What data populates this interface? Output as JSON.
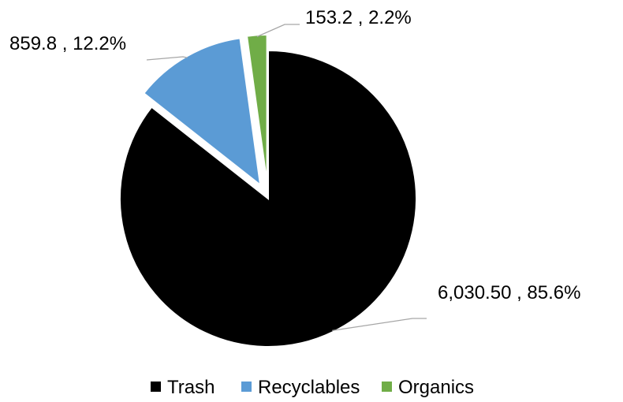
{
  "chart_data": {
    "type": "pie",
    "title": "",
    "categories": [
      "Trash",
      "Recyclables",
      "Organics"
    ],
    "values": [
      6030.5,
      859.8,
      153.2
    ],
    "data_labels": [
      "6,030.50 , 85.6%",
      "859.8 , 12.2%",
      "153.2 , 2.2%"
    ],
    "percentages": [
      85.6,
      12.2,
      2.2
    ],
    "colors": [
      "#000000",
      "#5b9bd5",
      "#70ad47"
    ],
    "exploded": [
      false,
      true,
      true
    ],
    "start_angle_deg": 0,
    "direction": "clockwise",
    "legend": {
      "position": "bottom",
      "entries": [
        "Trash",
        "Recyclables",
        "Organics"
      ]
    }
  }
}
